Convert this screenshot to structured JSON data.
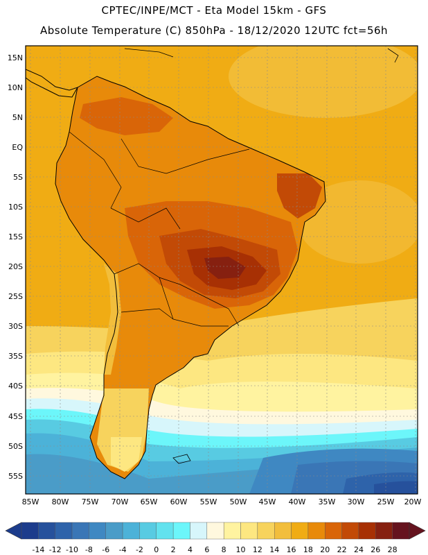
{
  "header": {
    "line1": "CPTEC/INPE/MCT -  Eta Model 15km - GFS",
    "line2": "Absolute Temperature (C) 850hPa - 18/12/2020 12UTC fct=56h"
  },
  "map": {
    "lat_ticks": [
      "15N",
      "10N",
      "5N",
      "EQ",
      "5S",
      "10S",
      "15S",
      "20S",
      "25S",
      "30S",
      "35S",
      "40S",
      "45S",
      "50S",
      "55S"
    ],
    "lon_ticks": [
      "85W",
      "80W",
      "75W",
      "70W",
      "65W",
      "60W",
      "55W",
      "50W",
      "45W",
      "40W",
      "35W",
      "30W",
      "25W",
      "20W"
    ]
  },
  "legend": {
    "labels": [
      "-14",
      "-12",
      "-10",
      "-8",
      "-6",
      "-4",
      "-2",
      "0",
      "2",
      "4",
      "6",
      "8",
      "10",
      "12",
      "14",
      "16",
      "18",
      "20",
      "22",
      "24",
      "26",
      "28"
    ],
    "colors": [
      "#1c3c8c",
      "#26519c",
      "#2e63aa",
      "#3a76b6",
      "#3f88c2",
      "#4a9cc8",
      "#4cb2d8",
      "#58cbe2",
      "#62e2ee",
      "#6cf6fa",
      "#d7f6fb",
      "#fff8de",
      "#fff3a0",
      "#fde781",
      "#f7d35d",
      "#f2be3c",
      "#f0ac14",
      "#e88a0a",
      "#d96508",
      "#c24a06",
      "#a73004",
      "#862010",
      "#65131e"
    ]
  }
}
